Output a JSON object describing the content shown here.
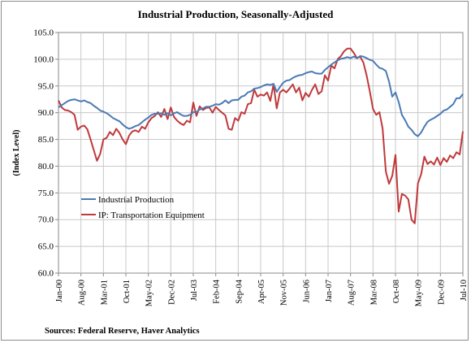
{
  "chart_data": {
    "type": "line",
    "title": "Industrial Production, Seasonally-Adjusted",
    "xlabel": "",
    "ylabel": "(Index Level)",
    "source": "Sources:  Federal Reserve, Haver Analytics",
    "ylim": [
      60,
      105
    ],
    "yticks": [
      "60.0",
      "65.0",
      "70.0",
      "75.0",
      "80.0",
      "85.0",
      "90.0",
      "95.0",
      "100.0",
      "105.0"
    ],
    "x_range": [
      "2000-01",
      "2010-07"
    ],
    "xticks": [
      {
        "date": "2000-01",
        "label": "Jan-00"
      },
      {
        "date": "2000-08",
        "label": "Aug-00"
      },
      {
        "date": "2001-03",
        "label": "Mar-01"
      },
      {
        "date": "2001-10",
        "label": "Oct-01"
      },
      {
        "date": "2002-05",
        "label": "May-02"
      },
      {
        "date": "2002-12",
        "label": "Dec-02"
      },
      {
        "date": "2003-07",
        "label": "Jul-03"
      },
      {
        "date": "2004-02",
        "label": "Feb-04"
      },
      {
        "date": "2004-09",
        "label": "Sep-04"
      },
      {
        "date": "2005-04",
        "label": "Apr-05"
      },
      {
        "date": "2005-11",
        "label": "Nov-05"
      },
      {
        "date": "2006-06",
        "label": "Jun-06"
      },
      {
        "date": "2007-01",
        "label": "Jan-07"
      },
      {
        "date": "2007-08",
        "label": "Aug-07"
      },
      {
        "date": "2008-03",
        "label": "Mar-08"
      },
      {
        "date": "2008-10",
        "label": "Oct-08"
      },
      {
        "date": "2009-05",
        "label": "May-09"
      },
      {
        "date": "2009-12",
        "label": "Dec-09"
      },
      {
        "date": "2010-07",
        "label": "Jul-10"
      }
    ],
    "grid": true,
    "legend_position": "lower-left",
    "series": [
      {
        "name": "Industrial Production",
        "color": "#4a7ab5",
        "points": [
          [
            "2000-01",
            91.0
          ],
          [
            "2000-02",
            91.4
          ],
          [
            "2000-03",
            91.8
          ],
          [
            "2000-04",
            92.2
          ],
          [
            "2000-05",
            92.4
          ],
          [
            "2000-06",
            92.5
          ],
          [
            "2000-07",
            92.3
          ],
          [
            "2000-08",
            92.1
          ],
          [
            "2000-09",
            92.3
          ],
          [
            "2000-10",
            92.0
          ],
          [
            "2000-11",
            91.8
          ],
          [
            "2000-12",
            91.3
          ],
          [
            "2001-01",
            90.9
          ],
          [
            "2001-02",
            90.4
          ],
          [
            "2001-03",
            90.2
          ],
          [
            "2001-04",
            89.9
          ],
          [
            "2001-05",
            89.5
          ],
          [
            "2001-06",
            89.0
          ],
          [
            "2001-07",
            88.7
          ],
          [
            "2001-08",
            88.4
          ],
          [
            "2001-09",
            87.8
          ],
          [
            "2001-10",
            87.3
          ],
          [
            "2001-11",
            87.0
          ],
          [
            "2001-12",
            87.2
          ],
          [
            "2002-01",
            87.5
          ],
          [
            "2002-02",
            87.7
          ],
          [
            "2002-03",
            88.2
          ],
          [
            "2002-04",
            88.7
          ],
          [
            "2002-05",
            89.1
          ],
          [
            "2002-06",
            89.6
          ],
          [
            "2002-07",
            89.8
          ],
          [
            "2002-08",
            89.8
          ],
          [
            "2002-09",
            89.9
          ],
          [
            "2002-10",
            89.6
          ],
          [
            "2002-11",
            89.9
          ],
          [
            "2002-12",
            89.5
          ],
          [
            "2003-01",
            89.9
          ],
          [
            "2003-02",
            90.1
          ],
          [
            "2003-03",
            89.7
          ],
          [
            "2003-04",
            89.4
          ],
          [
            "2003-05",
            89.4
          ],
          [
            "2003-06",
            89.6
          ],
          [
            "2003-07",
            90.1
          ],
          [
            "2003-08",
            90.1
          ],
          [
            "2003-09",
            90.6
          ],
          [
            "2003-10",
            90.8
          ],
          [
            "2003-11",
            91.1
          ],
          [
            "2003-12",
            91.1
          ],
          [
            "2004-01",
            91.3
          ],
          [
            "2004-02",
            91.6
          ],
          [
            "2004-03",
            91.5
          ],
          [
            "2004-04",
            91.8
          ],
          [
            "2004-05",
            92.3
          ],
          [
            "2004-06",
            91.8
          ],
          [
            "2004-07",
            92.3
          ],
          [
            "2004-08",
            92.4
          ],
          [
            "2004-09",
            92.4
          ],
          [
            "2004-10",
            93.0
          ],
          [
            "2004-11",
            93.2
          ],
          [
            "2004-12",
            93.8
          ],
          [
            "2005-01",
            94.0
          ],
          [
            "2005-02",
            94.5
          ],
          [
            "2005-03",
            94.6
          ],
          [
            "2005-04",
            94.8
          ],
          [
            "2005-05",
            95.1
          ],
          [
            "2005-06",
            95.3
          ],
          [
            "2005-07",
            95.2
          ],
          [
            "2005-08",
            95.4
          ],
          [
            "2005-09",
            93.9
          ],
          [
            "2005-10",
            94.8
          ],
          [
            "2005-11",
            95.6
          ],
          [
            "2005-12",
            96.0
          ],
          [
            "2006-01",
            96.1
          ],
          [
            "2006-02",
            96.5
          ],
          [
            "2006-03",
            96.8
          ],
          [
            "2006-04",
            97.0
          ],
          [
            "2006-05",
            97.1
          ],
          [
            "2006-06",
            97.4
          ],
          [
            "2006-07",
            97.6
          ],
          [
            "2006-08",
            97.7
          ],
          [
            "2006-09",
            97.4
          ],
          [
            "2006-10",
            97.3
          ],
          [
            "2006-11",
            97.3
          ],
          [
            "2006-12",
            98.0
          ],
          [
            "2007-01",
            98.5
          ],
          [
            "2007-02",
            99.0
          ],
          [
            "2007-03",
            99.4
          ],
          [
            "2007-04",
            99.8
          ],
          [
            "2007-05",
            100.1
          ],
          [
            "2007-06",
            100.2
          ],
          [
            "2007-07",
            100.4
          ],
          [
            "2007-08",
            100.2
          ],
          [
            "2007-09",
            100.5
          ],
          [
            "2007-10",
            100.2
          ],
          [
            "2007-11",
            100.6
          ],
          [
            "2007-12",
            100.5
          ],
          [
            "2008-01",
            100.2
          ],
          [
            "2008-02",
            99.9
          ],
          [
            "2008-03",
            99.7
          ],
          [
            "2008-04",
            99.0
          ],
          [
            "2008-05",
            98.4
          ],
          [
            "2008-06",
            98.2
          ],
          [
            "2008-07",
            97.8
          ],
          [
            "2008-08",
            95.8
          ],
          [
            "2008-09",
            93.0
          ],
          [
            "2008-10",
            93.8
          ],
          [
            "2008-11",
            92.0
          ],
          [
            "2008-12",
            89.6
          ],
          [
            "2009-01",
            88.6
          ],
          [
            "2009-02",
            87.4
          ],
          [
            "2009-03",
            86.8
          ],
          [
            "2009-04",
            86.0
          ],
          [
            "2009-05",
            85.6
          ],
          [
            "2009-06",
            86.3
          ],
          [
            "2009-07",
            87.4
          ],
          [
            "2009-08",
            88.3
          ],
          [
            "2009-09",
            88.7
          ],
          [
            "2009-10",
            89.0
          ],
          [
            "2009-11",
            89.4
          ],
          [
            "2009-12",
            89.8
          ],
          [
            "2010-01",
            90.4
          ],
          [
            "2010-02",
            90.6
          ],
          [
            "2010-03",
            91.1
          ],
          [
            "2010-04",
            91.6
          ],
          [
            "2010-05",
            92.7
          ],
          [
            "2010-06",
            92.7
          ],
          [
            "2010-07",
            93.5
          ]
        ]
      },
      {
        "name": "IP:  Transportation Equipment",
        "color": "#c0393b",
        "points": [
          [
            "2000-01",
            92.3
          ],
          [
            "2000-02",
            91.0
          ],
          [
            "2000-03",
            90.5
          ],
          [
            "2000-04",
            90.4
          ],
          [
            "2000-05",
            90.1
          ],
          [
            "2000-06",
            89.6
          ],
          [
            "2000-07",
            86.8
          ],
          [
            "2000-08",
            87.4
          ],
          [
            "2000-09",
            87.6
          ],
          [
            "2000-10",
            86.9
          ],
          [
            "2000-11",
            85.0
          ],
          [
            "2000-12",
            83.0
          ],
          [
            "2001-01",
            81.0
          ],
          [
            "2001-02",
            82.3
          ],
          [
            "2001-03",
            85.0
          ],
          [
            "2001-04",
            85.3
          ],
          [
            "2001-05",
            86.4
          ],
          [
            "2001-06",
            85.8
          ],
          [
            "2001-07",
            87.0
          ],
          [
            "2001-08",
            86.2
          ],
          [
            "2001-09",
            85.0
          ],
          [
            "2001-10",
            84.1
          ],
          [
            "2001-11",
            85.7
          ],
          [
            "2001-12",
            86.5
          ],
          [
            "2002-01",
            86.7
          ],
          [
            "2002-02",
            86.4
          ],
          [
            "2002-03",
            87.4
          ],
          [
            "2002-04",
            87.0
          ],
          [
            "2002-05",
            88.2
          ],
          [
            "2002-06",
            89.0
          ],
          [
            "2002-07",
            89.4
          ],
          [
            "2002-08",
            90.1
          ],
          [
            "2002-09",
            89.2
          ],
          [
            "2002-10",
            90.7
          ],
          [
            "2002-11",
            88.8
          ],
          [
            "2002-12",
            91.0
          ],
          [
            "2003-01",
            89.2
          ],
          [
            "2003-02",
            88.5
          ],
          [
            "2003-03",
            88.0
          ],
          [
            "2003-04",
            87.7
          ],
          [
            "2003-05",
            88.5
          ],
          [
            "2003-06",
            88.2
          ],
          [
            "2003-07",
            91.9
          ],
          [
            "2003-08",
            89.4
          ],
          [
            "2003-09",
            91.2
          ],
          [
            "2003-10",
            90.5
          ],
          [
            "2003-11",
            90.9
          ],
          [
            "2003-12",
            91.0
          ],
          [
            "2004-01",
            90.0
          ],
          [
            "2004-02",
            91.1
          ],
          [
            "2004-03",
            90.5
          ],
          [
            "2004-04",
            90.0
          ],
          [
            "2004-05",
            89.5
          ],
          [
            "2004-06",
            87.0
          ],
          [
            "2004-07",
            86.8
          ],
          [
            "2004-08",
            89.0
          ],
          [
            "2004-09",
            88.5
          ],
          [
            "2004-10",
            90.1
          ],
          [
            "2004-11",
            89.8
          ],
          [
            "2004-12",
            91.6
          ],
          [
            "2005-01",
            91.8
          ],
          [
            "2005-02",
            94.3
          ],
          [
            "2005-03",
            93.0
          ],
          [
            "2005-04",
            93.4
          ],
          [
            "2005-05",
            93.2
          ],
          [
            "2005-06",
            93.8
          ],
          [
            "2005-07",
            92.2
          ],
          [
            "2005-08",
            95.3
          ],
          [
            "2005-09",
            90.8
          ],
          [
            "2005-10",
            93.8
          ],
          [
            "2005-11",
            94.3
          ],
          [
            "2005-12",
            93.8
          ],
          [
            "2006-01",
            94.5
          ],
          [
            "2006-02",
            95.3
          ],
          [
            "2006-03",
            93.8
          ],
          [
            "2006-04",
            94.7
          ],
          [
            "2006-05",
            92.3
          ],
          [
            "2006-06",
            93.7
          ],
          [
            "2006-07",
            93.0
          ],
          [
            "2006-08",
            94.3
          ],
          [
            "2006-09",
            95.3
          ],
          [
            "2006-10",
            93.5
          ],
          [
            "2006-11",
            94.0
          ],
          [
            "2006-12",
            97.0
          ],
          [
            "2007-01",
            96.0
          ],
          [
            "2007-02",
            98.8
          ],
          [
            "2007-03",
            98.3
          ],
          [
            "2007-04",
            100.0
          ],
          [
            "2007-05",
            100.6
          ],
          [
            "2007-06",
            101.5
          ],
          [
            "2007-07",
            102.0
          ],
          [
            "2007-08",
            102.0
          ],
          [
            "2007-09",
            101.2
          ],
          [
            "2007-10",
            100.2
          ],
          [
            "2007-11",
            100.5
          ],
          [
            "2007-12",
            99.4
          ],
          [
            "2008-01",
            97.0
          ],
          [
            "2008-02",
            94.0
          ],
          [
            "2008-03",
            90.7
          ],
          [
            "2008-04",
            89.6
          ],
          [
            "2008-05",
            90.1
          ],
          [
            "2008-06",
            87.0
          ],
          [
            "2008-07",
            79.0
          ],
          [
            "2008-08",
            76.7
          ],
          [
            "2008-09",
            78.2
          ],
          [
            "2008-10",
            82.1
          ],
          [
            "2008-11",
            71.5
          ],
          [
            "2008-12",
            74.8
          ],
          [
            "2009-01",
            74.5
          ],
          [
            "2009-02",
            73.8
          ],
          [
            "2009-03",
            70.0
          ],
          [
            "2009-04",
            69.3
          ],
          [
            "2009-05",
            76.8
          ],
          [
            "2009-06",
            78.5
          ],
          [
            "2009-07",
            81.8
          ],
          [
            "2009-08",
            80.4
          ],
          [
            "2009-09",
            80.9
          ],
          [
            "2009-10",
            80.3
          ],
          [
            "2009-11",
            81.6
          ],
          [
            "2009-12",
            80.2
          ],
          [
            "2010-01",
            81.5
          ],
          [
            "2010-02",
            80.8
          ],
          [
            "2010-03",
            82.0
          ],
          [
            "2010-04",
            81.5
          ],
          [
            "2010-05",
            82.6
          ],
          [
            "2010-06",
            82.2
          ],
          [
            "2010-07",
            86.5
          ]
        ]
      }
    ]
  }
}
